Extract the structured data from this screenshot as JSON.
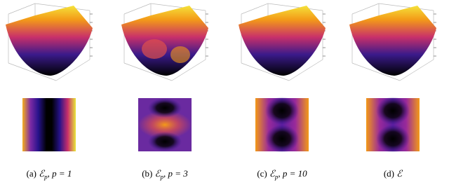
{
  "panels": [
    {
      "label": "(a)",
      "symbol": "ℰ",
      "subscript": "p",
      "condition": "p = 1"
    },
    {
      "label": "(b)",
      "symbol": "ℰ",
      "subscript": "p",
      "condition": "p = 3"
    },
    {
      "label": "(c)",
      "symbol": "ℰ",
      "subscript": "p",
      "condition": "p = 10"
    },
    {
      "label": "(d)",
      "symbol": "ℰ"
    }
  ]
}
